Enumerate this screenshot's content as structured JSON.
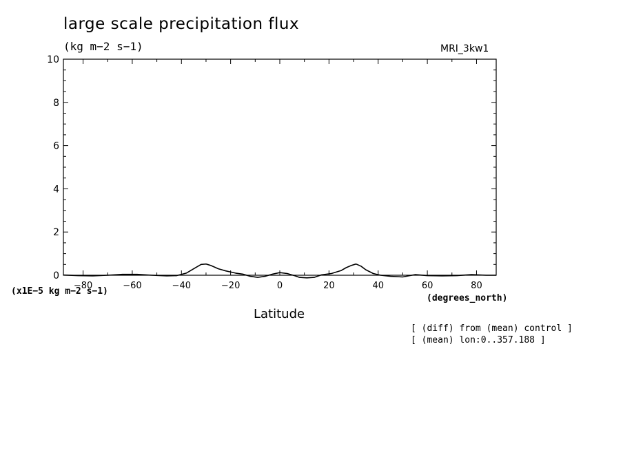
{
  "title": "large scale precipitation flux",
  "units_label": "(kg m−2 s−1)",
  "model_label": "MRI_3kw1",
  "x_axis_label": "Latitude",
  "x_units_label": "(degrees_north)",
  "scale_label": "(x1E−5 kg m−2 s−1)",
  "notes": {
    "line1": "[ (diff) from (mean) control ]",
    "line2": "[ (mean) lon:0..357.188 ]"
  },
  "chart_data": {
    "type": "line",
    "title": "large scale precipitation flux",
    "xlabel": "Latitude",
    "ylabel": "",
    "xlim": [
      -88,
      88
    ],
    "ylim": [
      0,
      10
    ],
    "xticks": [
      -80,
      -60,
      -40,
      -20,
      0,
      20,
      40,
      60,
      80
    ],
    "xtick_labels": [
      "−80",
      "−60",
      "−40",
      "−20",
      "0",
      "20",
      "40",
      "60",
      "80"
    ],
    "yticks": [
      0,
      2,
      4,
      6,
      8,
      10
    ],
    "ytick_labels": [
      "0",
      "2",
      "4",
      "6",
      "8",
      "10"
    ],
    "grid": false,
    "series": [
      {
        "x": [
          -88,
          -82,
          -76,
          -70,
          -64,
          -58,
          -52,
          -46,
          -42,
          -38,
          -35,
          -32,
          -30,
          -28,
          -25,
          -22,
          -18,
          -15,
          -12,
          -9,
          -6,
          -3,
          0,
          3,
          6,
          8,
          11,
          14,
          17,
          21,
          25,
          27,
          29,
          31,
          33,
          35,
          38,
          41,
          45,
          50,
          55,
          60,
          66,
          72,
          78,
          84,
          88
        ],
        "y": [
          0.01,
          -0.02,
          -0.03,
          0.0,
          0.04,
          0.04,
          0.0,
          -0.03,
          -0.02,
          0.1,
          0.3,
          0.5,
          0.52,
          0.45,
          0.3,
          0.2,
          0.1,
          0.05,
          -0.05,
          -0.1,
          -0.05,
          0.05,
          0.12,
          0.08,
          -0.02,
          -0.1,
          -0.12,
          -0.1,
          0.02,
          0.08,
          0.22,
          0.35,
          0.45,
          0.52,
          0.42,
          0.25,
          0.08,
          0.0,
          -0.05,
          -0.08,
          0.03,
          -0.02,
          -0.03,
          -0.02,
          0.03,
          0.0,
          0.0
        ],
        "color": "#000000"
      }
    ]
  }
}
